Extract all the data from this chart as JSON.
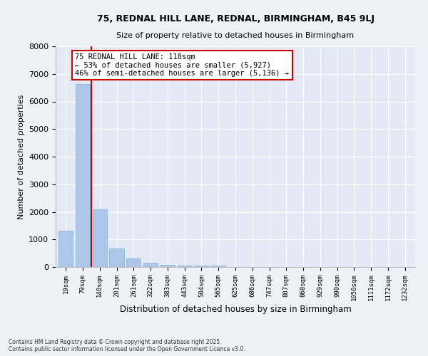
{
  "title1": "75, REDNAL HILL LANE, REDNAL, BIRMINGHAM, B45 9LJ",
  "title2": "Size of property relative to detached houses in Birmingham",
  "xlabel": "Distribution of detached houses by size in Birmingham",
  "ylabel": "Number of detached properties",
  "categories": [
    "19sqm",
    "79sqm",
    "140sqm",
    "201sqm",
    "261sqm",
    "322sqm",
    "383sqm",
    "443sqm",
    "504sqm",
    "565sqm",
    "625sqm",
    "686sqm",
    "747sqm",
    "807sqm",
    "868sqm",
    "929sqm",
    "990sqm",
    "1050sqm",
    "1111sqm",
    "1172sqm",
    "1232sqm"
  ],
  "values": [
    1320,
    6620,
    2080,
    670,
    300,
    150,
    90,
    55,
    50,
    50,
    0,
    0,
    0,
    0,
    0,
    0,
    0,
    0,
    0,
    0,
    0
  ],
  "bar_color": "#aec6e8",
  "bar_edge_color": "#7aaed6",
  "vline_color": "#cc0000",
  "annotation_title": "75 REDNAL HILL LANE: 118sqm",
  "annotation_line1": "← 53% of detached houses are smaller (5,927)",
  "annotation_line2": "46% of semi-detached houses are larger (5,136) →",
  "annotation_box_color": "#cc0000",
  "ylim": [
    0,
    8000
  ],
  "yticks": [
    0,
    1000,
    2000,
    3000,
    4000,
    5000,
    6000,
    7000,
    8000
  ],
  "footnote1": "Contains HM Land Registry data © Crown copyright and database right 2025.",
  "footnote2": "Contains public sector information licensed under the Open Government Licence v3.0.",
  "bg_color": "#eef2f8",
  "plot_bg_color": "#e4eaf5"
}
